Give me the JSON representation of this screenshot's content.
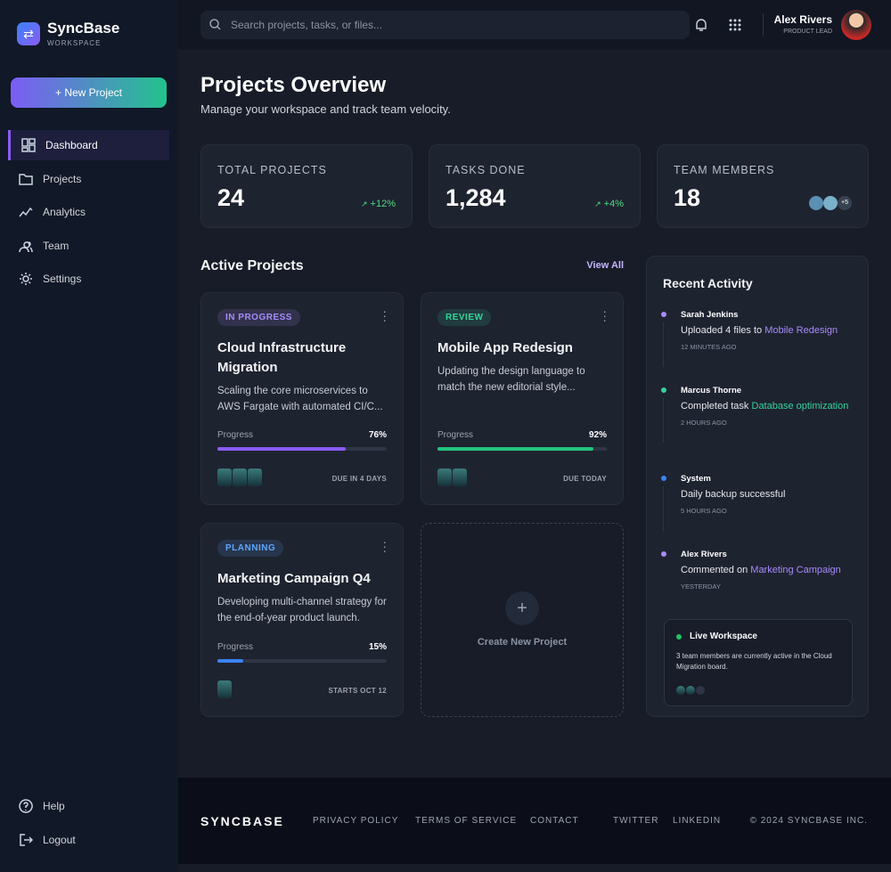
{
  "sidebar": {
    "brand": "SyncBase",
    "brand_sub": "WORKSPACE",
    "new_button": "+ New Project",
    "nav": [
      "Dashboard",
      "Projects",
      "Analytics",
      "Team",
      "Settings"
    ],
    "bottom": [
      "Help",
      "Logout"
    ]
  },
  "topbar": {
    "search_placeholder": "Search projects, tasks, or files...",
    "user_name": "Alex Rivers",
    "user_role": "PRODUCT LEAD"
  },
  "header": {
    "title": "Projects Overview",
    "subtitle": "Manage your workspace and track team velocity."
  },
  "stats": [
    {
      "label": "TOTAL PROJECTS",
      "value": "24",
      "change": "+12%"
    },
    {
      "label": "TASKS DONE",
      "value": "1,284",
      "change": "+4%"
    },
    {
      "label": "TEAM MEMBERS",
      "value": "18",
      "extra": "+5"
    }
  ],
  "projects": {
    "title": "Active Projects",
    "view_all": "View All",
    "create": "Create New Project",
    "cards": [
      {
        "status": "IN PROGRESS",
        "status_color": "#a78bfa",
        "title": "Cloud Infrastructure Migration",
        "description": "Scaling the core microservices to AWS Fargate with automated CI/C...",
        "progress_label": "Progress",
        "progress": 76,
        "progress_text": "76%",
        "bar_color": "#8b5cf6",
        "due": "DUE IN 4 DAYS"
      },
      {
        "status": "REVIEW",
        "status_color": "#34d399",
        "title": "Mobile App Redesign",
        "description": "Updating the design language to match the new editorial style...",
        "progress_label": "Progress",
        "progress": 92,
        "progress_text": "92%",
        "bar_color": "#22c37e",
        "due": "DUE TODAY"
      },
      {
        "status": "PLANNING",
        "status_color": "#60a5fa",
        "title": "Marketing Campaign Q4",
        "description": "Developing multi-channel strategy for the end-of-year product launch.",
        "progress_label": "Progress",
        "progress": 15,
        "progress_text": "15%",
        "bar_color": "#3b82f6",
        "due": "STARTS OCT 12"
      }
    ]
  },
  "activity": {
    "title": "Recent Activity",
    "items": [
      {
        "name": "Sarah Jenkins",
        "text": "Uploaded 4 files to",
        "link": "Mobile Redesign",
        "time": "12 MINUTES AGO",
        "color": "#a78bfa"
      },
      {
        "name": "Marcus Thorne",
        "text": "Completed task",
        "link": "Database optimization",
        "time": "2 HOURS AGO",
        "color": "#34d399"
      },
      {
        "name": "System",
        "text": "Daily backup successful",
        "time": "5 HOURS AGO",
        "color": "#3b82f6"
      },
      {
        "name": "Alex Rivers",
        "text": "Commented on",
        "link": "Marketing Campaign",
        "time": "YESTERDAY",
        "color": "#a78bfa"
      }
    ],
    "live": {
      "title": "Live Workspace",
      "text": "3 team members are currently active in the Cloud Migration board."
    }
  },
  "footer": {
    "brand": "SYNCBASE",
    "links": [
      "PRIVACY POLICY",
      "TERMS OF SERVICE",
      "CONTACT",
      "TWITTER",
      "LINKEDIN"
    ],
    "copyright": "© 2024 SYNCBASE INC."
  }
}
